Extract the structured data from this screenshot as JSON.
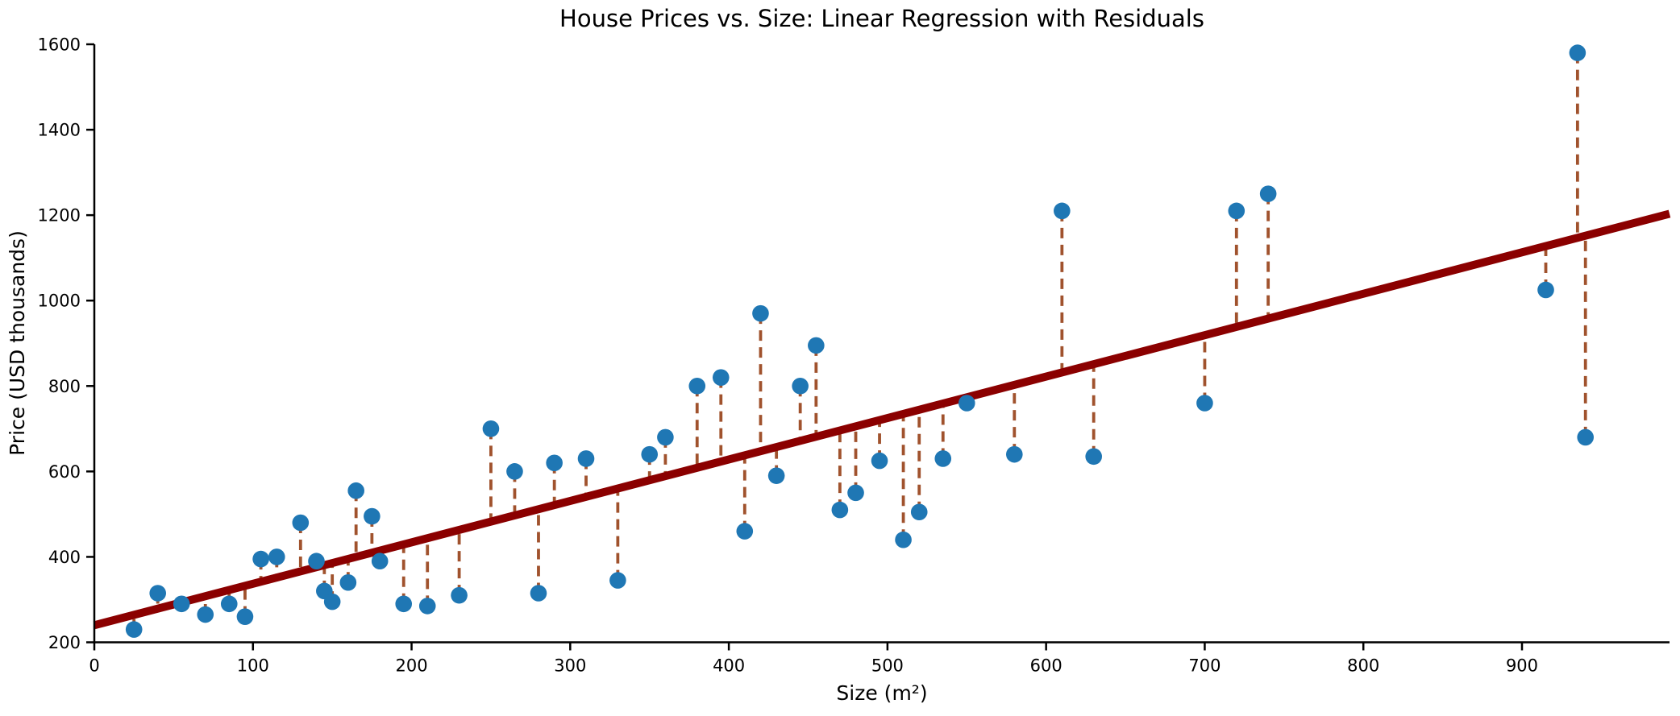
{
  "chart_data": {
    "type": "scatter",
    "title": "House Prices vs. Size: Linear Regression with Residuals",
    "xlabel": "Size (m²)",
    "ylabel": "Price (USD thousands)",
    "xlim": [
      0,
      993
    ],
    "ylim": [
      200,
      1600
    ],
    "x_ticks": [
      0,
      100,
      200,
      300,
      400,
      500,
      600,
      700,
      800,
      900
    ],
    "y_ticks": [
      200,
      400,
      600,
      800,
      1000,
      1200,
      1400,
      1600
    ],
    "grid": false,
    "legend": "none",
    "points": [
      [
        25,
        230
      ],
      [
        40,
        315
      ],
      [
        55,
        290
      ],
      [
        70,
        265
      ],
      [
        85,
        290
      ],
      [
        95,
        260
      ],
      [
        105,
        395
      ],
      [
        115,
        400
      ],
      [
        130,
        480
      ],
      [
        140,
        390
      ],
      [
        145,
        320
      ],
      [
        150,
        295
      ],
      [
        160,
        340
      ],
      [
        165,
        555
      ],
      [
        175,
        495
      ],
      [
        180,
        390
      ],
      [
        195,
        290
      ],
      [
        210,
        285
      ],
      [
        230,
        310
      ],
      [
        250,
        700
      ],
      [
        265,
        600
      ],
      [
        280,
        315
      ],
      [
        290,
        620
      ],
      [
        310,
        630
      ],
      [
        330,
        345
      ],
      [
        350,
        640
      ],
      [
        360,
        680
      ],
      [
        380,
        800
      ],
      [
        395,
        820
      ],
      [
        410,
        460
      ],
      [
        420,
        970
      ],
      [
        430,
        590
      ],
      [
        445,
        800
      ],
      [
        455,
        895
      ],
      [
        470,
        510
      ],
      [
        480,
        550
      ],
      [
        495,
        625
      ],
      [
        510,
        440
      ],
      [
        520,
        505
      ],
      [
        535,
        630
      ],
      [
        550,
        760
      ],
      [
        580,
        640
      ],
      [
        610,
        1210
      ],
      [
        630,
        635
      ],
      [
        700,
        760
      ],
      [
        720,
        1210
      ],
      [
        740,
        1250
      ],
      [
        915,
        1025
      ],
      [
        935,
        1580
      ],
      [
        940,
        680
      ]
    ],
    "regression_line": {
      "type": "linear",
      "intercept": 240,
      "slope": 0.97,
      "x_start": 0,
      "x_end": 993
    },
    "residuals": "dashed vertical line from each point to the regression line",
    "colors": {
      "points": "#1f77b4",
      "regression_line": "#8b0000",
      "residuals": "#a0522d",
      "axes": "#000000",
      "background": "#ffffff"
    }
  }
}
